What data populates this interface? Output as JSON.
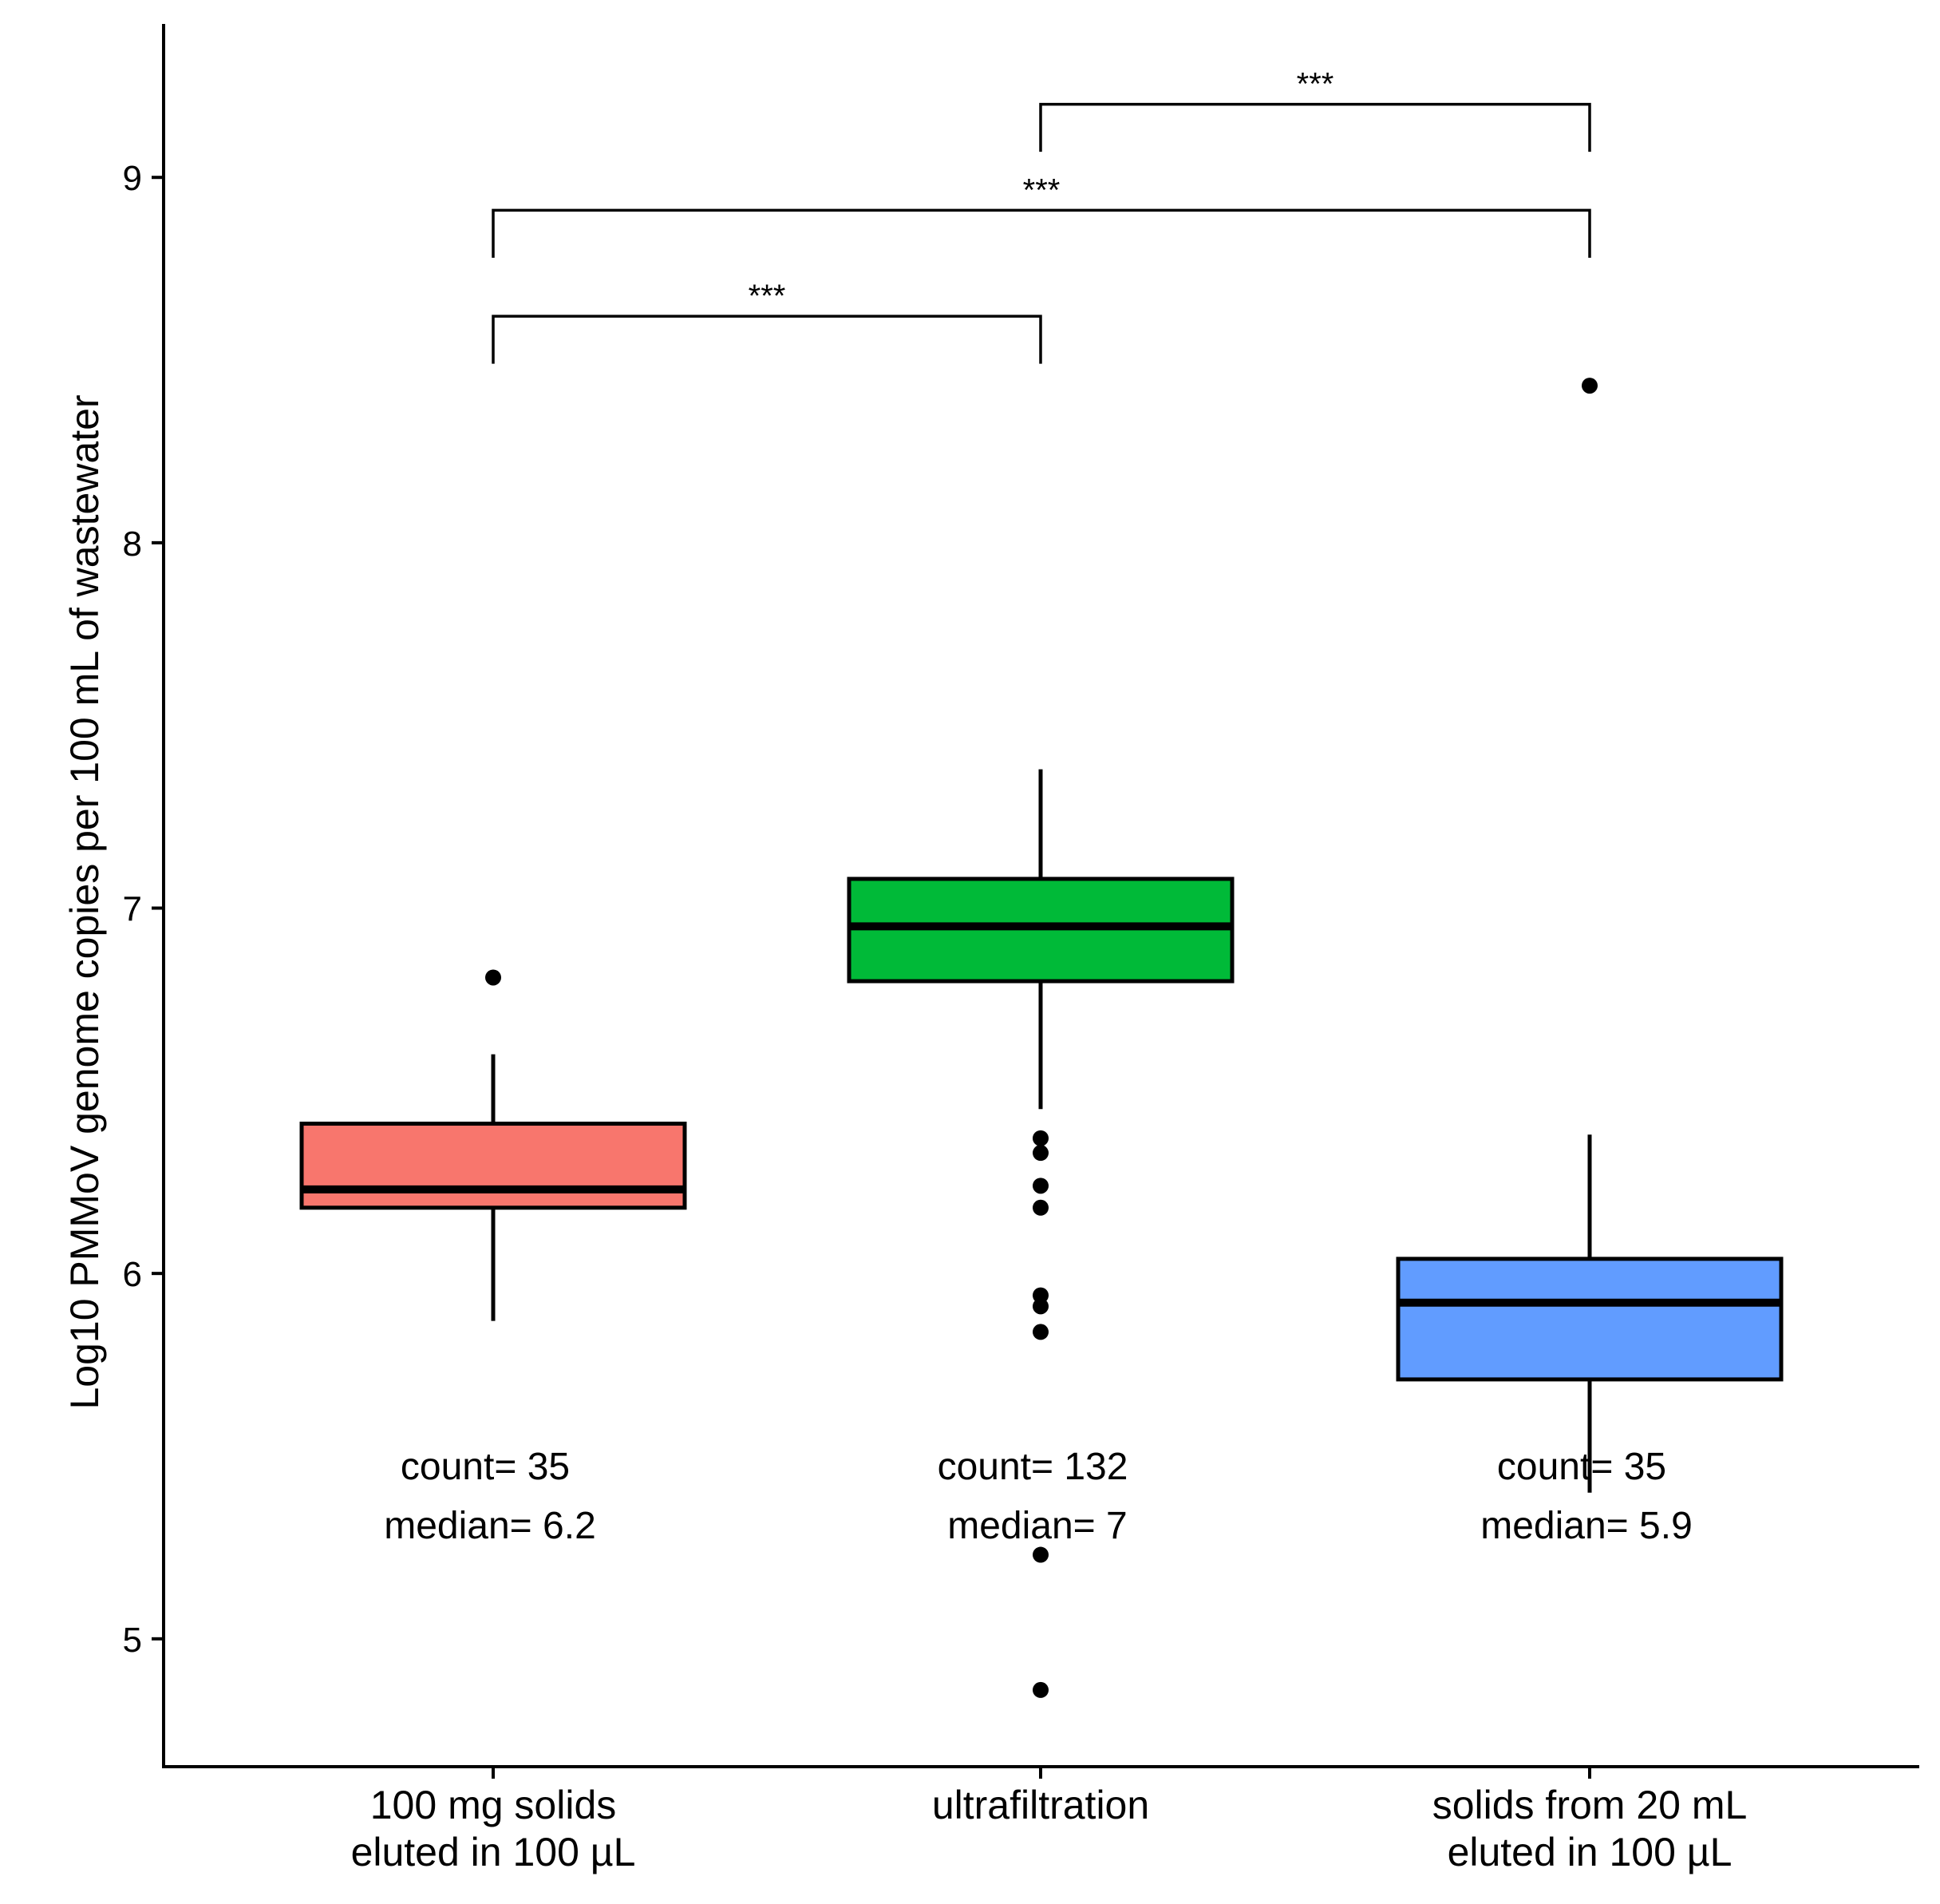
{
  "chart_data": {
    "type": "box",
    "title": "",
    "xlabel": "",
    "ylabel": "Log10 PMMoV genome copies per 100 mL of wastewater",
    "ylim": [
      4.65,
      9.42
    ],
    "yticks": [
      5,
      6,
      7,
      8,
      9
    ],
    "grid": false,
    "legend": "none",
    "groups": [
      {
        "label_lines": [
          "100 mg solids",
          "eluted in 100 µL"
        ],
        "color": "#F8766D",
        "q1": 6.18,
        "median": 6.23,
        "q3": 6.41,
        "whisker_low": 5.87,
        "whisker_high": 6.6,
        "outliers": [
          6.81
        ],
        "count_text": "count= 35",
        "median_text": "median= 6.2"
      },
      {
        "label_lines": [
          "ultrafiltration"
        ],
        "color": "#00BA38",
        "q1": 6.8,
        "median": 6.95,
        "q3": 7.08,
        "whisker_low": 6.45,
        "whisker_high": 7.38,
        "outliers": [
          6.37,
          6.33,
          6.24,
          6.18,
          5.94,
          5.91,
          5.84,
          5.23,
          4.86
        ],
        "count_text": "count= 132",
        "median_text": "median= 7"
      },
      {
        "label_lines": [
          "solids from 20 mL",
          "eluted in 100 µL"
        ],
        "color": "#619CFF",
        "q1": 5.71,
        "median": 5.92,
        "q3": 6.04,
        "whisker_low": 5.4,
        "whisker_high": 6.38,
        "outliers": [
          8.43
        ],
        "count_text": "count= 35",
        "median_text": "median= 5.9"
      }
    ],
    "comparisons": [
      {
        "from": 0,
        "to": 1,
        "label": "***",
        "y_top": 8.62,
        "y_bottom": 8.49
      },
      {
        "from": 0,
        "to": 2,
        "label": "***",
        "y_top": 8.91,
        "y_bottom": 8.78
      },
      {
        "from": 1,
        "to": 2,
        "label": "***",
        "y_top": 9.2,
        "y_bottom": 9.07
      }
    ]
  }
}
